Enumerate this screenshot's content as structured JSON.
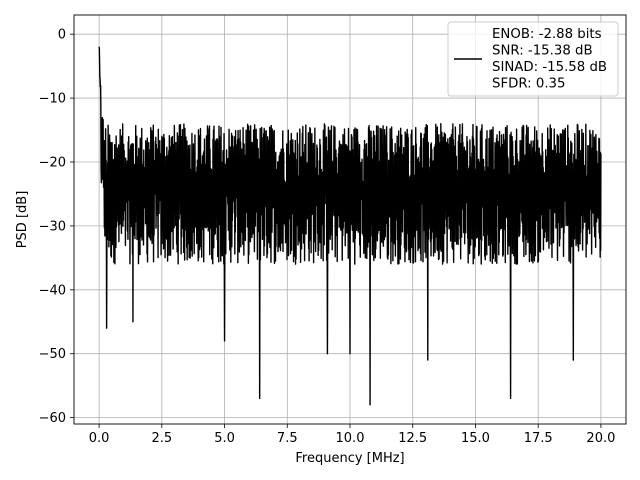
{
  "chart_data": {
    "type": "line",
    "title": "",
    "xlabel": "Frequency [MHz]",
    "ylabel": "PSD [dB]",
    "xlim": [
      -1.0,
      21.0
    ],
    "ylim": [
      -61.0,
      3.0
    ],
    "xticks": [
      0.0,
      2.5,
      5.0,
      7.5,
      10.0,
      12.5,
      15.0,
      17.5,
      20.0
    ],
    "xtick_labels": [
      "0.0",
      "2.5",
      "5.0",
      "7.5",
      "10.0",
      "12.5",
      "15.0",
      "17.5",
      "20.0"
    ],
    "yticks": [
      0,
      -10,
      -20,
      -30,
      -40,
      -50,
      -60
    ],
    "ytick_labels": [
      "0",
      "−10",
      "−20",
      "−30",
      "−40",
      "−50",
      "−60"
    ],
    "grid": true,
    "legend_position": "upper-right",
    "legend_lines": [
      "ENOB: -2.88 bits",
      "SNR: -15.38 dB",
      "SINAD: -15.58 dB",
      "SFDR: 0.35"
    ],
    "series": [
      {
        "color": "#000000",
        "x_range": [
          0.0,
          20.0
        ],
        "peak_at_dc_db": 0,
        "noise_floor_range_db": [
          -36,
          -14
        ],
        "notable_dips": [
          {
            "x": 0.3,
            "y": -46
          },
          {
            "x": 1.35,
            "y": -45
          },
          {
            "x": 5.0,
            "y": -48
          },
          {
            "x": 6.4,
            "y": -57
          },
          {
            "x": 9.1,
            "y": -50
          },
          {
            "x": 10.0,
            "y": -50
          },
          {
            "x": 10.8,
            "y": -58
          },
          {
            "x": 13.1,
            "y": -51
          },
          {
            "x": 16.4,
            "y": -57
          },
          {
            "x": 18.9,
            "y": -51
          }
        ]
      }
    ]
  }
}
